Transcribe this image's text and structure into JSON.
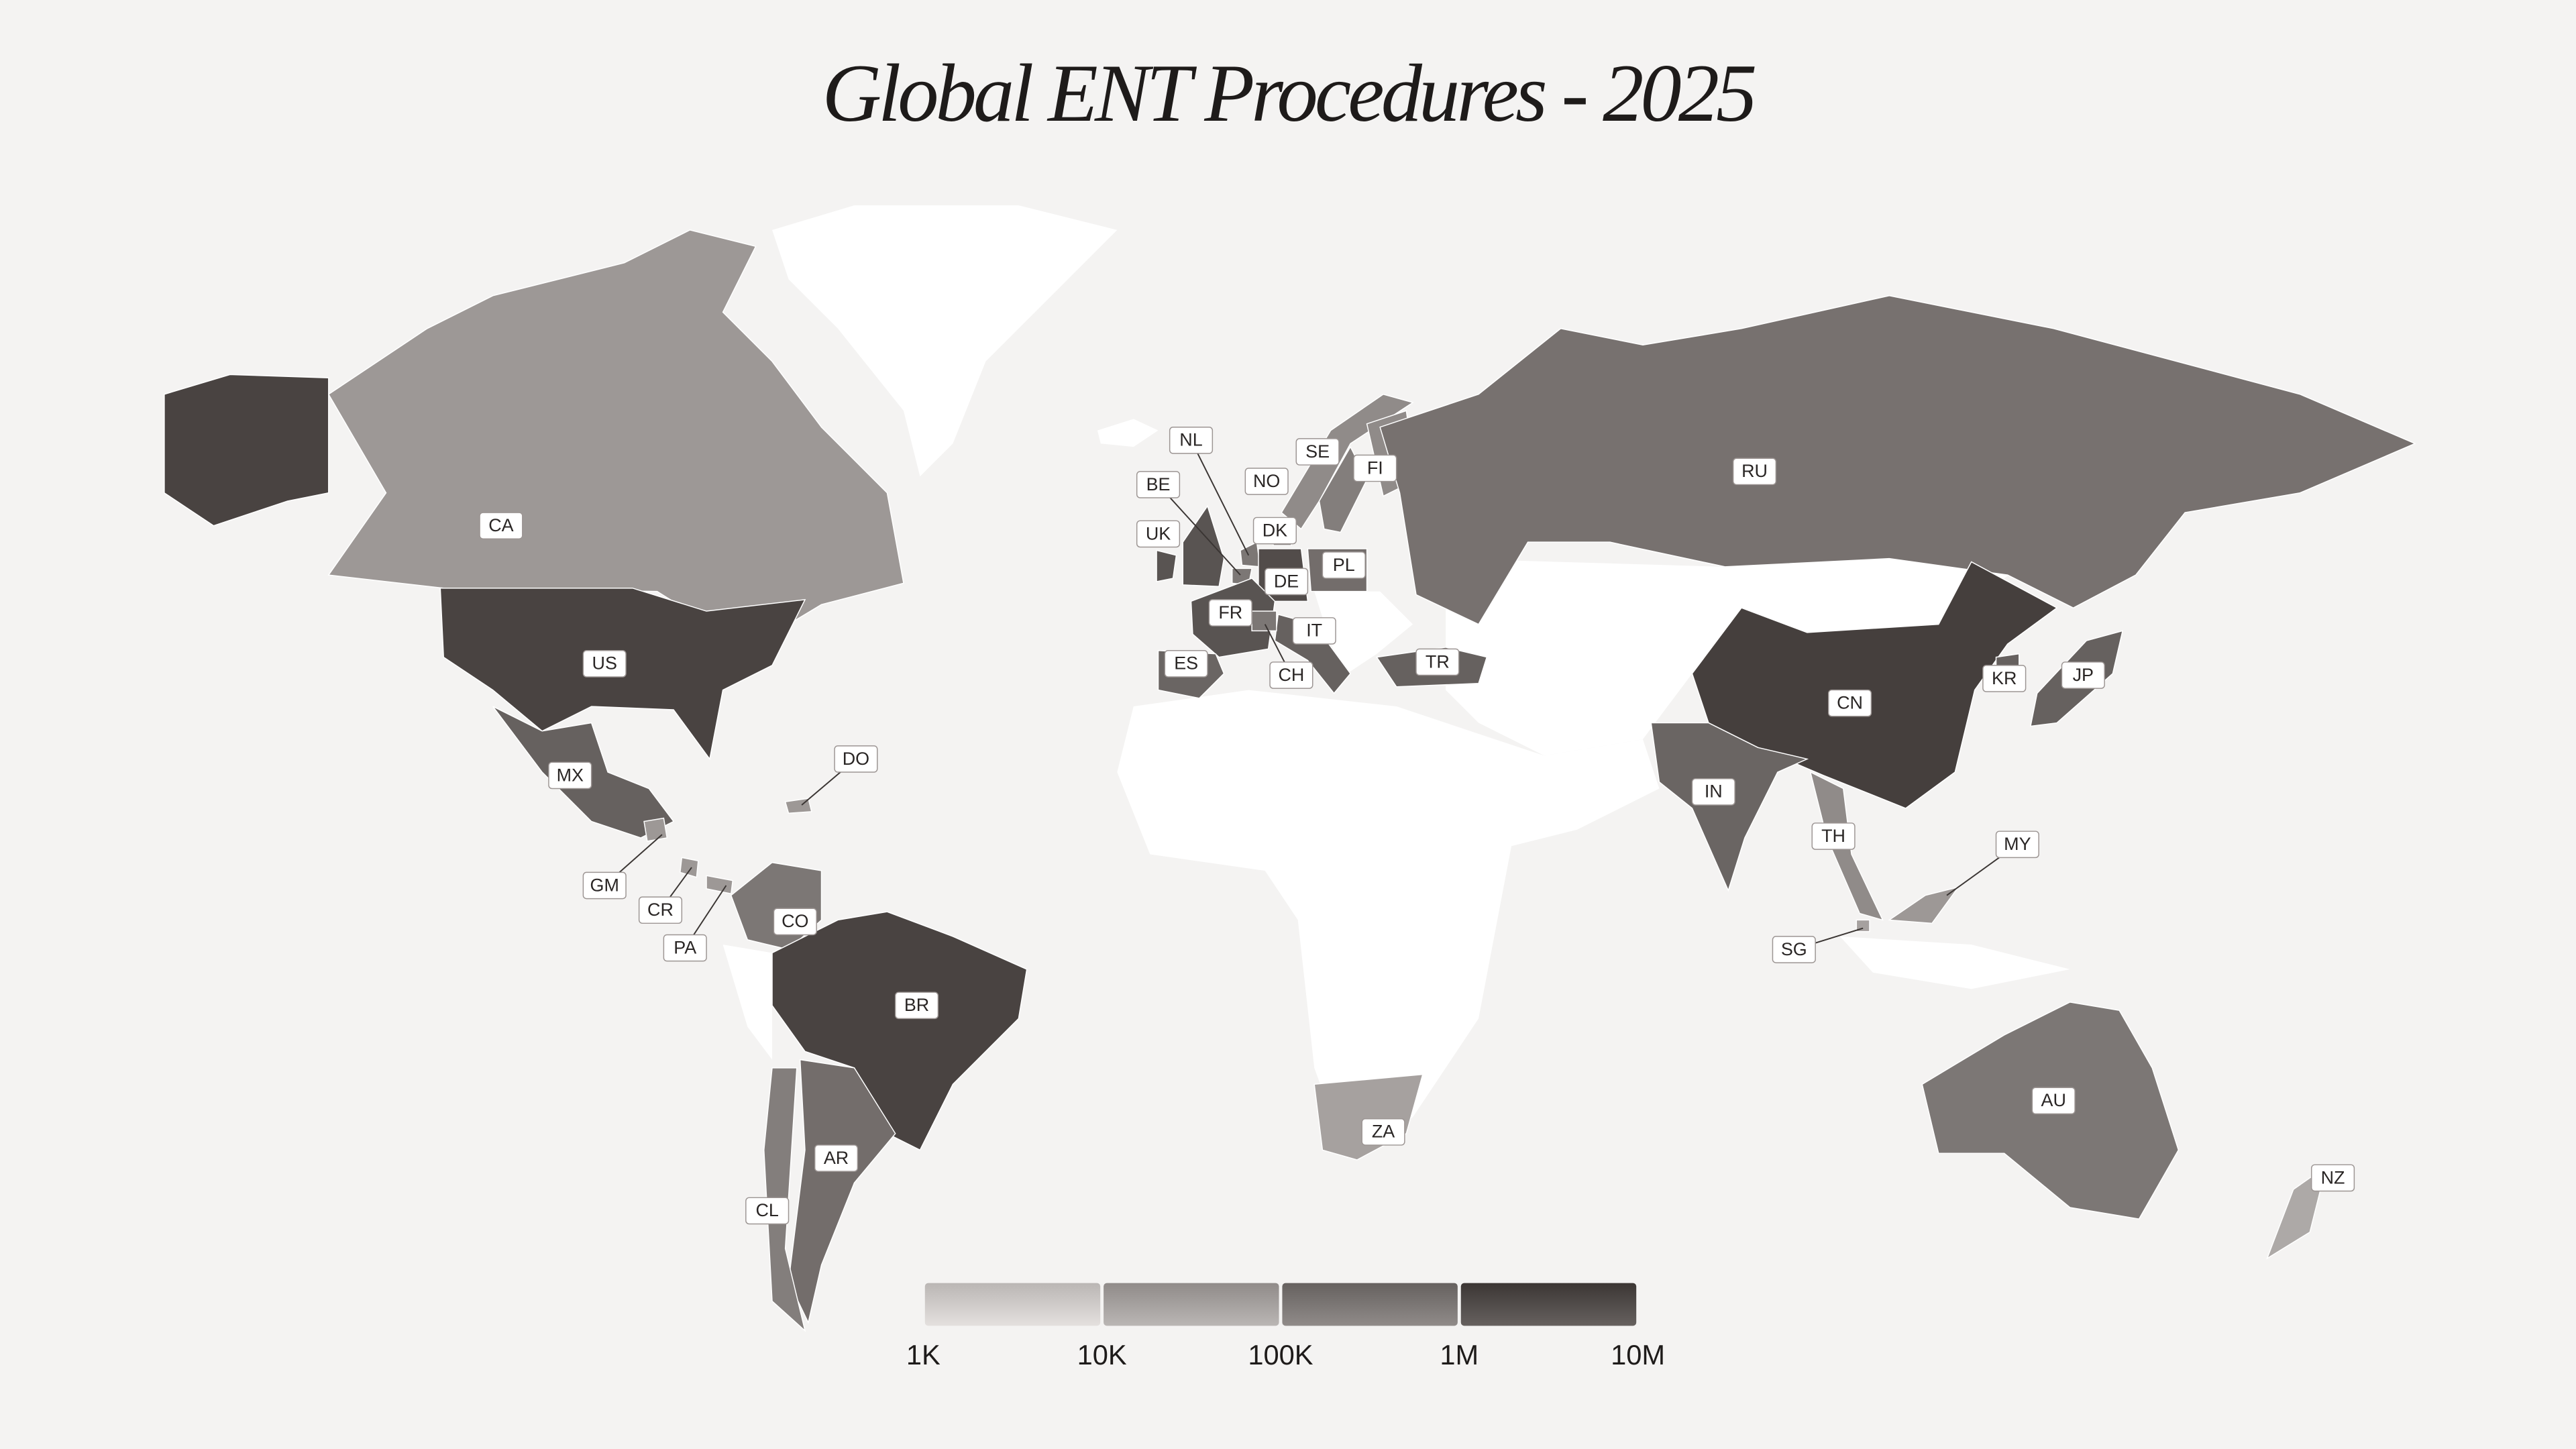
{
  "title": "Global ENT Procedures - 2025",
  "legend": {
    "range": [
      1000,
      10000000
    ],
    "ticks": [
      {
        "value": 1000,
        "label": "1K"
      },
      {
        "value": 10000,
        "label": "10K"
      },
      {
        "value": 100000,
        "label": "100K"
      },
      {
        "value": 1000000,
        "label": "1M"
      },
      {
        "value": 10000000,
        "label": "10M"
      }
    ]
  },
  "countries": [
    {
      "code": "CA",
      "value": 50000
    },
    {
      "code": "US",
      "value": 5000000
    },
    {
      "code": "MX",
      "value": 1000000
    },
    {
      "code": "DO",
      "value": 50000
    },
    {
      "code": "GM",
      "value": 50000
    },
    {
      "code": "CR",
      "value": 50000
    },
    {
      "code": "PA",
      "value": 50000
    },
    {
      "code": "CO",
      "value": 300000
    },
    {
      "code": "BR",
      "value": 5000000
    },
    {
      "code": "AR",
      "value": 500000
    },
    {
      "code": "CL",
      "value": 200000
    },
    {
      "code": "NL",
      "value": 300000
    },
    {
      "code": "BE",
      "value": 300000
    },
    {
      "code": "UK",
      "value": 2000000
    },
    {
      "code": "NO",
      "value": 100000
    },
    {
      "code": "SE",
      "value": 200000
    },
    {
      "code": "FI",
      "value": 100000
    },
    {
      "code": "DK",
      "value": 100000
    },
    {
      "code": "DE",
      "value": 3000000
    },
    {
      "code": "PL",
      "value": 500000
    },
    {
      "code": "FR",
      "value": 2000000
    },
    {
      "code": "IT",
      "value": 1000000
    },
    {
      "code": "CH",
      "value": 300000
    },
    {
      "code": "ES",
      "value": 800000
    },
    {
      "code": "TR",
      "value": 1000000
    },
    {
      "code": "RU",
      "value": 400000
    },
    {
      "code": "CN",
      "value": 6000000
    },
    {
      "code": "IN",
      "value": 800000
    },
    {
      "code": "KR",
      "value": 1000000
    },
    {
      "code": "JP",
      "value": 1000000
    },
    {
      "code": "TH",
      "value": 100000
    },
    {
      "code": "MY",
      "value": 50000
    },
    {
      "code": "SG",
      "value": 30000
    },
    {
      "code": "AU",
      "value": 300000
    },
    {
      "code": "NZ",
      "value": 20000
    },
    {
      "code": "ZA",
      "value": 30000
    }
  ]
}
